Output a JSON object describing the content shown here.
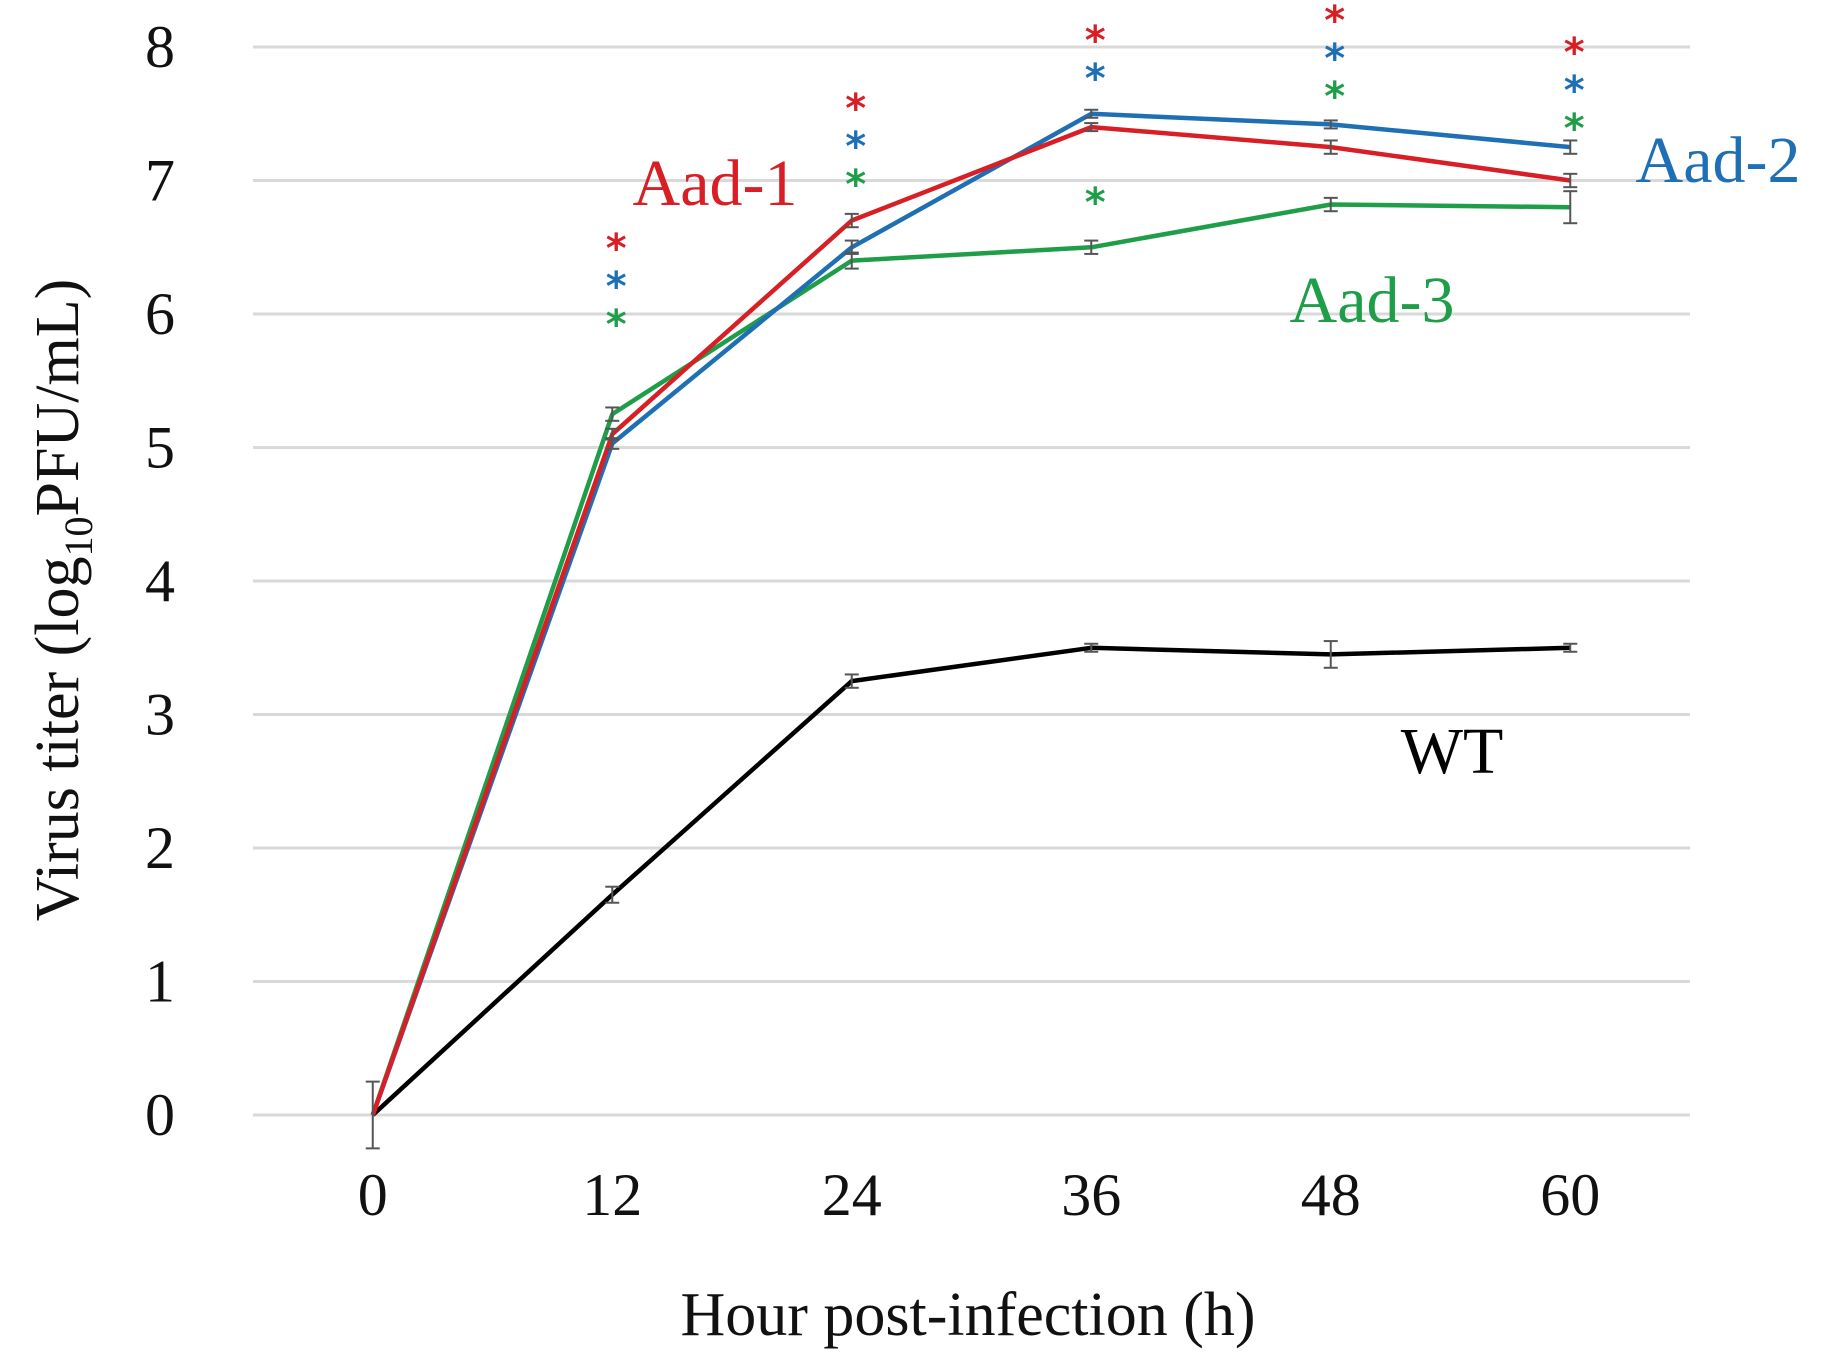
{
  "chart_data": {
    "type": "line",
    "title": "",
    "xlabel": "Hour post-infection (h)",
    "ylabel_main": "Virus titer (log",
    "ylabel_sub": "10",
    "ylabel_tail": "PFU/mL)",
    "x": [
      0,
      12,
      24,
      36,
      48,
      60
    ],
    "x_tick_labels": [
      "0",
      "12",
      "24",
      "36",
      "48",
      "60"
    ],
    "y_tick_labels": [
      "0",
      "1",
      "2",
      "3",
      "4",
      "5",
      "6",
      "7",
      "8"
    ],
    "xlim": [
      -6,
      66
    ],
    "ylim": [
      0,
      8
    ],
    "grid": true,
    "series": [
      {
        "name": "WT",
        "color": "#000000",
        "values": [
          0,
          1.65,
          3.25,
          3.5,
          3.45,
          3.5
        ],
        "errors": [
          0,
          0.06,
          0.05,
          0.03,
          0.1,
          0.03
        ]
      },
      {
        "name": "Aad-3",
        "color": "#1e9e48",
        "values": [
          0,
          5.25,
          6.4,
          6.5,
          6.82,
          6.8
        ],
        "errors": [
          0.25,
          0.05,
          0.06,
          0.05,
          0.05,
          0.12
        ]
      },
      {
        "name": "Aad-2",
        "color": "#1f6fb5",
        "values": [
          0,
          5.03,
          6.5,
          7.5,
          7.42,
          7.25
        ],
        "errors": [
          0,
          0.04,
          0.05,
          0.03,
          0.03,
          0.05
        ]
      },
      {
        "name": "Aad-1",
        "color": "#d81f26",
        "values": [
          0,
          5.1,
          6.7,
          7.4,
          7.25,
          7.0
        ],
        "errors": [
          0,
          0.04,
          0.05,
          0.03,
          0.05,
          0.05
        ]
      }
    ],
    "significance_marks": [
      {
        "x": 12,
        "symbols": [
          {
            "text": "*",
            "series": "Aad-1"
          },
          {
            "text": "*",
            "series": "Aad-2"
          },
          {
            "text": "*",
            "series": "Aad-3"
          }
        ]
      },
      {
        "x": 24,
        "symbols": [
          {
            "text": "*",
            "series": "Aad-1"
          },
          {
            "text": "*",
            "series": "Aad-2"
          },
          {
            "text": "*",
            "series": "Aad-3"
          }
        ]
      },
      {
        "x": 36,
        "symbols": [
          {
            "text": "*",
            "series": "Aad-1"
          },
          {
            "text": "*",
            "series": "Aad-2"
          }
        ]
      },
      {
        "x": 36,
        "symbols": [
          {
            "text": "*",
            "series": "Aad-3"
          }
        ]
      },
      {
        "x": 48,
        "symbols": [
          {
            "text": "*",
            "series": "Aad-1"
          },
          {
            "text": "*",
            "series": "Aad-2"
          },
          {
            "text": "*",
            "series": "Aad-3"
          }
        ]
      },
      {
        "x": 60,
        "symbols": [
          {
            "text": "*",
            "series": "Aad-1"
          },
          {
            "text": "*",
            "series": "Aad-2"
          },
          {
            "text": "*",
            "series": "Aad-3"
          }
        ]
      }
    ],
    "series_labels": [
      {
        "text": "Aad-1",
        "series": "Aad-1"
      },
      {
        "text": "Aad-2",
        "series": "Aad-2"
      },
      {
        "text": "Aad-3",
        "series": "Aad-3"
      },
      {
        "text": "WT",
        "series": "WT"
      }
    ]
  }
}
